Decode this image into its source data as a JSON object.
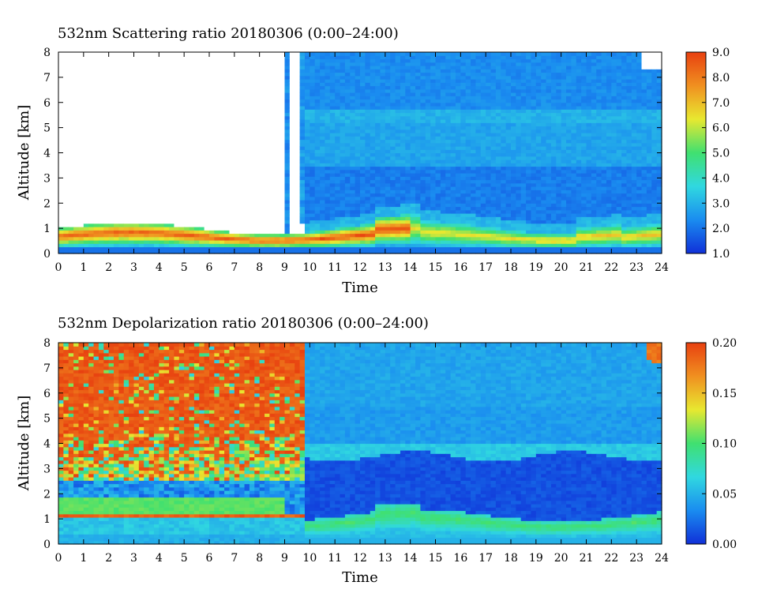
{
  "chart_data": [
    {
      "type": "heatmap",
      "title": "532nm Scattering ratio  20180306 (0:00–24:00)",
      "xlabel": "Time",
      "ylabel": "Altitude [km]",
      "xlim": [
        0,
        24
      ],
      "ylim": [
        0,
        8
      ],
      "x_ticks": [
        "0",
        "1",
        "2",
        "3",
        "4",
        "5",
        "6",
        "7",
        "8",
        "9",
        "10",
        "11",
        "12",
        "13",
        "14",
        "15",
        "16",
        "17",
        "18",
        "19",
        "20",
        "21",
        "22",
        "23",
        "24"
      ],
      "y_ticks": [
        "0",
        "1",
        "2",
        "3",
        "4",
        "5",
        "6",
        "7",
        "8"
      ],
      "colorbar": {
        "min": 1.0,
        "max": 9.0,
        "ticks": [
          "1.0",
          "2.0",
          "3.0",
          "4.0",
          "5.0",
          "6.0",
          "7.0",
          "8.0",
          "9.0"
        ],
        "colormap": [
          "#1030d8",
          "#1a8cf0",
          "#30d8e0",
          "#40e070",
          "#e8e830",
          "#f09020",
          "#e84010"
        ]
      },
      "features": [
        {
          "name": "background",
          "value": 2.0
        },
        {
          "name": "boundary layer",
          "t_start": 0,
          "t_end": 24,
          "alt_top_km": 1.1,
          "value_max": 7.5
        },
        {
          "name": "missing data",
          "t_start": 0,
          "t_end": 9.8,
          "alt_min_km": 1.0,
          "alt_max_km": 8.0
        },
        {
          "name": "cloud",
          "t_start": 23.2,
          "t_end": 24,
          "alt_min_km": 7.3,
          "alt_max_km": 8.0
        }
      ]
    },
    {
      "type": "heatmap",
      "title": "532nm Depolarization ratio  20180306 (0:00–24:00)",
      "xlabel": "Time",
      "ylabel": "Altitude [km]",
      "xlim": [
        0,
        24
      ],
      "ylim": [
        0,
        8
      ],
      "x_ticks": [
        "0",
        "1",
        "2",
        "3",
        "4",
        "5",
        "6",
        "7",
        "8",
        "9",
        "10",
        "11",
        "12",
        "13",
        "14",
        "15",
        "16",
        "17",
        "18",
        "19",
        "20",
        "21",
        "22",
        "23",
        "24"
      ],
      "y_ticks": [
        "0",
        "1",
        "2",
        "3",
        "4",
        "5",
        "6",
        "7",
        "8"
      ],
      "colorbar": {
        "min": 0.0,
        "max": 0.2,
        "ticks": [
          "0.00",
          "0.05",
          "0.10",
          "0.15",
          "0.20"
        ],
        "colormap": [
          "#1030d8",
          "#1a8cf0",
          "#30d8e0",
          "#40e070",
          "#e8e830",
          "#f09020",
          "#e84010"
        ]
      },
      "features": [
        {
          "name": "noisy high values",
          "t_start": 0,
          "t_end": 9.8,
          "alt_min_km": 2.5,
          "alt_max_km": 8.0,
          "value": 0.2
        },
        {
          "name": "aerosol layer",
          "t_start": 0,
          "t_end": 9.0,
          "alt_min_km": 1.2,
          "alt_max_km": 1.9,
          "value": 0.1
        },
        {
          "name": "low depolarization",
          "t_start": 9.8,
          "t_end": 24,
          "alt_min_km": 1.3,
          "alt_max_km": 3.5,
          "value": 0.02
        },
        {
          "name": "cloud",
          "t_start": 23.2,
          "t_end": 24,
          "alt_min_km": 7.2,
          "alt_max_km": 8.0,
          "value": 0.2
        }
      ]
    }
  ]
}
